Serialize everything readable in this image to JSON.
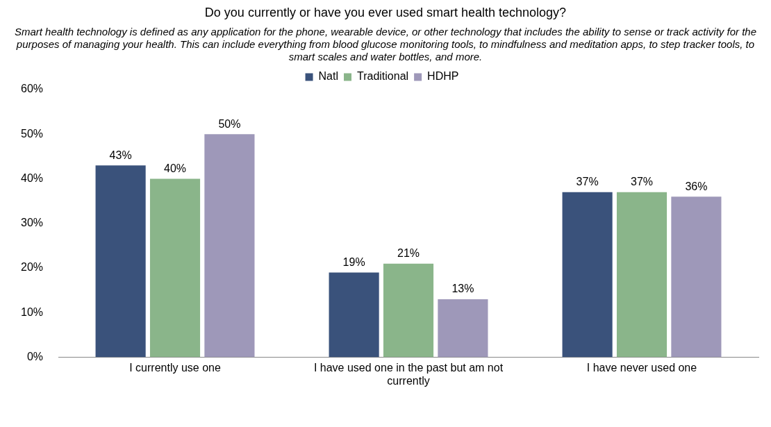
{
  "chart_data": {
    "type": "bar",
    "title": "Do you currently or have you ever used smart health technology?",
    "subtitle": "Smart health technology is defined as any application for the phone, wearable device, or other technology that includes the ability to sense or track activity for the purposes of managing your health. This can include everything from blood glucose monitoring tools, to mindfulness and meditation apps, to step tracker tools, to smart scales and water bottles, and more.",
    "categories": [
      "I currently use one",
      "I have used one in the past but am not currently",
      "I have never used one"
    ],
    "series": [
      {
        "name": "Natl",
        "color": "#3a527b",
        "values": [
          43,
          19,
          37
        ],
        "value_labels": [
          "43%",
          "19%",
          "37%"
        ]
      },
      {
        "name": "Traditional",
        "color": "#8ab58a",
        "values": [
          40,
          21,
          37
        ],
        "value_labels": [
          "40%",
          "21%",
          "37%"
        ]
      },
      {
        "name": "HDHP",
        "color": "#9e98b9",
        "values": [
          50,
          13,
          36
        ],
        "value_labels": [
          "50%",
          "13%",
          "36%"
        ]
      }
    ],
    "ylim": [
      0,
      60
    ],
    "yticks": [
      {
        "value": 0,
        "label": "0%"
      },
      {
        "value": 10,
        "label": "10%"
      },
      {
        "value": 20,
        "label": "20%"
      },
      {
        "value": 30,
        "label": "30%"
      },
      {
        "value": 40,
        "label": "40%"
      },
      {
        "value": 50,
        "label": "50%"
      },
      {
        "value": 60,
        "label": "60%"
      }
    ],
    "grid": false,
    "legend": "top"
  }
}
